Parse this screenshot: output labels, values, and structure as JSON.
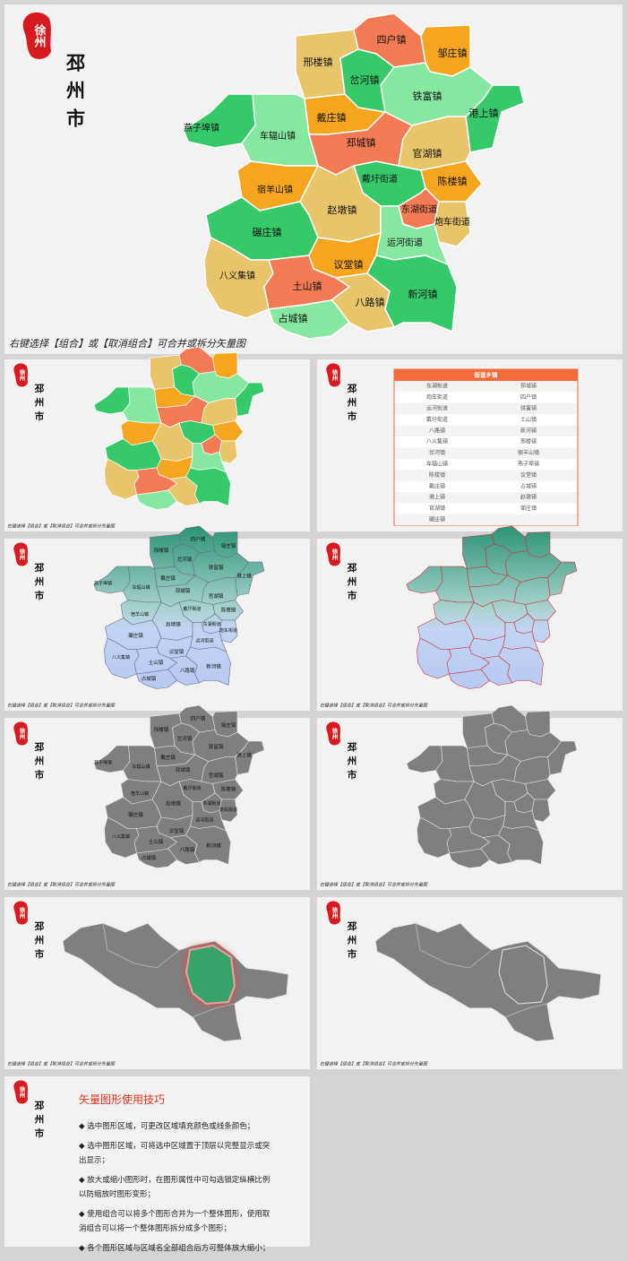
{
  "logo": "徐州",
  "city": "邳州市",
  "caption": "右键选择【组合】或【取消组合】可合并或拆分矢量图",
  "towns": [
    "邢楼镇",
    "四户镇",
    "邹庄镇",
    "岔河镇",
    "铁富镇",
    "港上镇",
    "燕子埠镇",
    "车辐山镇",
    "戴庄镇",
    "邳城镇",
    "官湖镇",
    "戴圩街道",
    "陈楼镇",
    "宿羊山镇",
    "赵墩镇",
    "东湖街道",
    "炮车街道",
    "碾庄镇",
    "运河街道",
    "八义集镇",
    "议堂镇",
    "土山镇",
    "新河镇",
    "八路镇",
    "占城镇"
  ],
  "table": {
    "header": "街道乡镇",
    "rows": [
      [
        "东湖街道",
        "邳城镇"
      ],
      [
        "炮车街道",
        "四户镇"
      ],
      [
        "运河街道",
        "铁富镇"
      ],
      [
        "戴圩街道",
        "土山镇"
      ],
      [
        "八路镇",
        "新河镇"
      ],
      [
        "八义集镇",
        "邢楼镇"
      ],
      [
        "岔河镇",
        "宿羊山镇"
      ],
      [
        "车辐山镇",
        "燕子埠镇"
      ],
      [
        "陈楼镇",
        "议堂镇"
      ],
      [
        "戴庄镇",
        "占城镇"
      ],
      [
        "港上镇",
        "赵墩镇"
      ],
      [
        "官湖镇",
        "邹庄镇"
      ],
      [
        "碾庄镇"
      ]
    ]
  },
  "tips": {
    "title": "矢量图形使用技巧",
    "items": [
      "◆ 选中图形区域，可更改区域填充颜色或线条颜色；",
      "◆ 选中图形区域，可将选中区域置于顶层以完整显示或突出显示；",
      "◆ 放大或缩小图形时，在图形属性中可勾选锁定纵横比例以防缩放时图形变形；",
      "◆ 使用组合可以将多个图形合并为一个整体图形，使用取消组合可以将一个整体图形拆分成多个图形；",
      "◆ 各个图形区域与区域名全部组合后方可整体放大缩小；"
    ]
  }
}
